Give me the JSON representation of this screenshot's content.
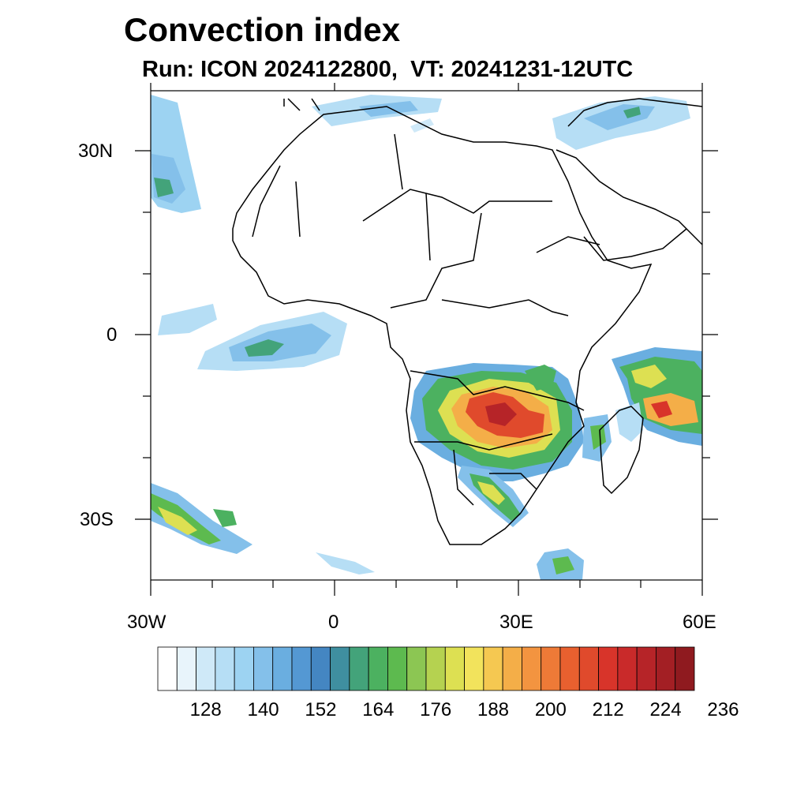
{
  "header": {
    "title": "Convection index",
    "subtitle": "Run: ICON 2024122800,  VT: 20241231-12UTC"
  },
  "map": {
    "lat_labels": [
      "30N",
      "0",
      "30S"
    ],
    "lon_labels": [
      "30W",
      "0",
      "30E",
      "60E"
    ]
  },
  "colorbar": {
    "colors": [
      "#ffffff",
      "#e8f4fb",
      "#cfe9f8",
      "#b6def5",
      "#9dd3f2",
      "#84c0ea",
      "#6aaee0",
      "#5498d3",
      "#4486c2",
      "#3f8fa0",
      "#43a37a",
      "#4cb160",
      "#5dba4f",
      "#8cc653",
      "#b5d250",
      "#dde052",
      "#f2e35c",
      "#f5c851",
      "#f4ae48",
      "#f39440",
      "#ee7a37",
      "#e8602f",
      "#e04a2c",
      "#d8342a",
      "#c92a2a",
      "#b62428",
      "#a31f24",
      "#8f1a1f"
    ],
    "tick_labels": [
      "128",
      "140",
      "152",
      "164",
      "176",
      "188",
      "200",
      "212",
      "224",
      "236"
    ]
  }
}
